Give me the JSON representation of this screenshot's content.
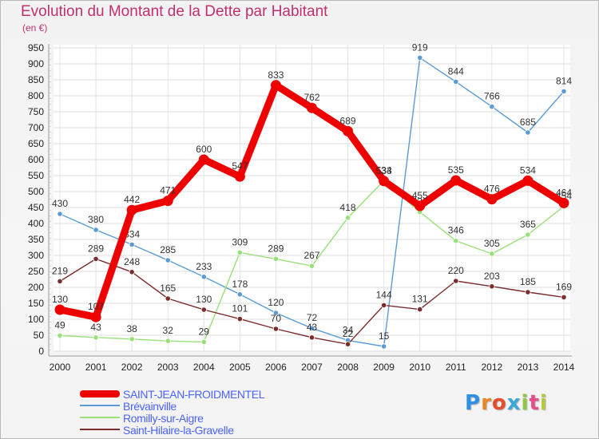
{
  "title": "Evolution du Montant de la Dette par Habitant",
  "unit": "(en €)",
  "logo": {
    "text": "Proxiti",
    "colors": [
      "#2f8fe0",
      "#e8862a",
      "#e84d2a",
      "#3aa8d8",
      "#8fc73e",
      "#e84d8a",
      "#b5c93a"
    ]
  },
  "chart_data": {
    "type": "line",
    "x": [
      "2000",
      "2001",
      "2002",
      "2003",
      "2004",
      "2005",
      "2006",
      "2007",
      "2008",
      "2009",
      "2010",
      "2011",
      "2012",
      "2013",
      "2014"
    ],
    "ylim": [
      0,
      950
    ],
    "yticks": [
      0,
      50,
      100,
      150,
      200,
      250,
      300,
      350,
      400,
      450,
      500,
      550,
      600,
      650,
      700,
      750,
      800,
      850,
      900,
      950
    ],
    "grid": true,
    "legend_position": "bottom-left",
    "series": [
      {
        "name": "SAINT-JEAN-FROIDMENTEL",
        "color": "#ee0000",
        "values": [
          130,
          107,
          442,
          471,
          600,
          547,
          833,
          762,
          689,
          533,
          455,
          535,
          476,
          534,
          464
        ],
        "labels": [
          "130",
          "107",
          "442",
          "471",
          "600",
          "547",
          "833",
          "762",
          "689",
          "533",
          "455",
          "535",
          "476",
          "534",
          "464"
        ]
      },
      {
        "name": "Brévainville",
        "color": "#5b9bd5",
        "values": [
          430,
          380,
          334,
          285,
          233,
          178,
          120,
          72,
          34,
          15,
          919,
          844,
          766,
          685,
          814
        ],
        "labels": [
          "430",
          "380",
          "334",
          "285",
          "233",
          "178",
          "120",
          "72",
          "34",
          "15",
          "919",
          "844",
          "766",
          "685",
          "814"
        ]
      },
      {
        "name": "Romilly-sur-Aigre",
        "color": "#99e07a",
        "values": [
          49,
          43,
          38,
          32,
          29,
          309,
          289,
          267,
          418,
          534,
          436,
          346,
          305,
          365,
          454
        ],
        "labels": [
          "49",
          "43",
          "38",
          "32",
          "29",
          "309",
          "289",
          "267",
          "418",
          "534",
          "436",
          "346",
          "305",
          "365",
          "454"
        ]
      },
      {
        "name": "Saint-Hilaire-la-Gravelle",
        "color": "#7b2c2c",
        "values": [
          219,
          289,
          248,
          165,
          130,
          101,
          70,
          43,
          22,
          144,
          131,
          220,
          203,
          185,
          169
        ],
        "labels": [
          "219",
          "289",
          "248",
          "165",
          "130",
          "101",
          "70",
          "43",
          "22",
          "144",
          "131",
          "220",
          "203",
          "185",
          "169"
        ]
      }
    ]
  }
}
